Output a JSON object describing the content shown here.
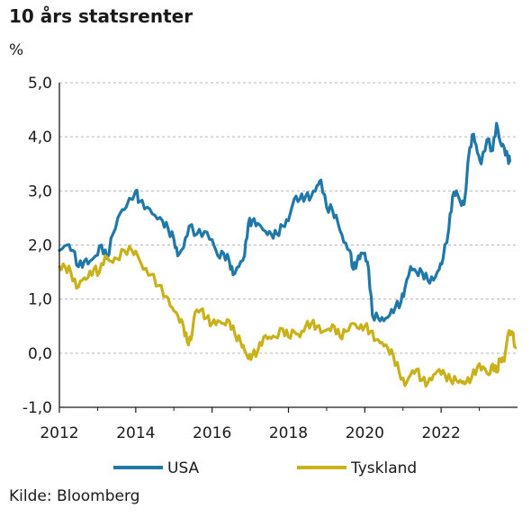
{
  "chart_data": {
    "type": "line",
    "title": "10 års statsrenter",
    "ylabel": "%",
    "source": "Kilde: Bloomberg",
    "xlim": [
      2012,
      2024
    ],
    "ylim": [
      -1.0,
      5.0
    ],
    "x_ticks": [
      2012,
      2014,
      2016,
      2018,
      2020,
      2022
    ],
    "x_tick_labels": [
      "2012",
      "2014",
      "2016",
      "2018",
      "2020",
      "2022"
    ],
    "y_ticks": [
      -1,
      0,
      1,
      2,
      3,
      4,
      5
    ],
    "y_tick_labels": [
      "-1,0",
      "0,0",
      "1,0",
      "2,0",
      "3,0",
      "4,0",
      "5,0"
    ],
    "grid": "horizontal dashed",
    "legend": "bottom",
    "series": [
      {
        "name": "USA",
        "color": "#1f78a8",
        "points": [
          [
            2012.0,
            1.9
          ],
          [
            2012.2,
            2.0
          ],
          [
            2012.35,
            1.9
          ],
          [
            2012.5,
            1.6
          ],
          [
            2012.65,
            1.7
          ],
          [
            2012.8,
            1.7
          ],
          [
            2012.95,
            1.8
          ],
          [
            2013.1,
            2.0
          ],
          [
            2013.25,
            1.75
          ],
          [
            2013.4,
            2.2
          ],
          [
            2013.6,
            2.6
          ],
          [
            2013.75,
            2.7
          ],
          [
            2014.0,
            3.0
          ],
          [
            2014.1,
            2.8
          ],
          [
            2014.3,
            2.7
          ],
          [
            2014.5,
            2.55
          ],
          [
            2014.7,
            2.45
          ],
          [
            2014.85,
            2.3
          ],
          [
            2015.0,
            2.1
          ],
          [
            2015.1,
            1.8
          ],
          [
            2015.25,
            1.95
          ],
          [
            2015.4,
            2.35
          ],
          [
            2015.6,
            2.2
          ],
          [
            2015.8,
            2.25
          ],
          [
            2016.0,
            2.1
          ],
          [
            2016.15,
            1.8
          ],
          [
            2016.3,
            1.85
          ],
          [
            2016.45,
            1.7
          ],
          [
            2016.55,
            1.45
          ],
          [
            2016.7,
            1.6
          ],
          [
            2016.85,
            1.8
          ],
          [
            2016.95,
            2.4
          ],
          [
            2017.05,
            2.45
          ],
          [
            2017.2,
            2.4
          ],
          [
            2017.4,
            2.25
          ],
          [
            2017.55,
            2.2
          ],
          [
            2017.7,
            2.2
          ],
          [
            2017.85,
            2.35
          ],
          [
            2018.0,
            2.45
          ],
          [
            2018.15,
            2.85
          ],
          [
            2018.3,
            2.85
          ],
          [
            2018.45,
            2.9
          ],
          [
            2018.6,
            2.9
          ],
          [
            2018.75,
            3.1
          ],
          [
            2018.85,
            3.2
          ],
          [
            2019.0,
            2.7
          ],
          [
            2019.15,
            2.65
          ],
          [
            2019.3,
            2.4
          ],
          [
            2019.45,
            2.05
          ],
          [
            2019.6,
            1.9
          ],
          [
            2019.7,
            1.55
          ],
          [
            2019.8,
            1.7
          ],
          [
            2019.9,
            1.85
          ],
          [
            2020.0,
            1.85
          ],
          [
            2020.1,
            1.55
          ],
          [
            2020.2,
            0.7
          ],
          [
            2020.35,
            0.65
          ],
          [
            2020.5,
            0.6
          ],
          [
            2020.65,
            0.7
          ],
          [
            2020.8,
            0.85
          ],
          [
            2020.95,
            0.95
          ],
          [
            2021.05,
            1.2
          ],
          [
            2021.2,
            1.6
          ],
          [
            2021.35,
            1.5
          ],
          [
            2021.5,
            1.5
          ],
          [
            2021.65,
            1.35
          ],
          [
            2021.8,
            1.35
          ],
          [
            2021.95,
            1.55
          ],
          [
            2022.05,
            1.75
          ],
          [
            2022.2,
            2.3
          ],
          [
            2022.3,
            2.9
          ],
          [
            2022.4,
            3.0
          ],
          [
            2022.5,
            2.8
          ],
          [
            2022.6,
            2.75
          ],
          [
            2022.75,
            3.8
          ],
          [
            2022.85,
            4.05
          ],
          [
            2022.95,
            3.7
          ],
          [
            2023.05,
            3.5
          ],
          [
            2023.2,
            3.95
          ],
          [
            2023.35,
            3.75
          ],
          [
            2023.45,
            4.25
          ],
          [
            2023.55,
            3.9
          ],
          [
            2023.65,
            3.8
          ],
          [
            2023.75,
            3.6
          ],
          [
            2023.8,
            3.55
          ]
        ]
      },
      {
        "name": "Tyskland",
        "color": "#c9b11a",
        "points": [
          [
            2012.0,
            1.6
          ],
          [
            2012.15,
            1.6
          ],
          [
            2012.3,
            1.5
          ],
          [
            2012.45,
            1.2
          ],
          [
            2012.6,
            1.35
          ],
          [
            2012.75,
            1.4
          ],
          [
            2012.9,
            1.55
          ],
          [
            2013.05,
            1.5
          ],
          [
            2013.2,
            1.8
          ],
          [
            2013.35,
            1.7
          ],
          [
            2013.5,
            1.75
          ],
          [
            2013.7,
            1.9
          ],
          [
            2013.9,
            1.9
          ],
          [
            2014.05,
            1.8
          ],
          [
            2014.2,
            1.55
          ],
          [
            2014.4,
            1.45
          ],
          [
            2014.6,
            1.25
          ],
          [
            2014.8,
            1.05
          ],
          [
            2014.95,
            0.85
          ],
          [
            2015.1,
            0.7
          ],
          [
            2015.25,
            0.5
          ],
          [
            2015.35,
            0.2
          ],
          [
            2015.45,
            0.25
          ],
          [
            2015.55,
            0.75
          ],
          [
            2015.7,
            0.8
          ],
          [
            2015.85,
            0.65
          ],
          [
            2016.0,
            0.55
          ],
          [
            2016.15,
            0.6
          ],
          [
            2016.3,
            0.55
          ],
          [
            2016.45,
            0.6
          ],
          [
            2016.6,
            0.35
          ],
          [
            2016.75,
            0.2
          ],
          [
            2016.85,
            0.05
          ],
          [
            2016.95,
            -0.1
          ],
          [
            2017.05,
            -0.05
          ],
          [
            2017.2,
            0.05
          ],
          [
            2017.35,
            0.3
          ],
          [
            2017.5,
            0.3
          ],
          [
            2017.65,
            0.3
          ],
          [
            2017.85,
            0.45
          ],
          [
            2018.0,
            0.3
          ],
          [
            2018.15,
            0.4
          ],
          [
            2018.3,
            0.3
          ],
          [
            2018.45,
            0.5
          ],
          [
            2018.6,
            0.55
          ],
          [
            2018.75,
            0.5
          ],
          [
            2018.9,
            0.4
          ],
          [
            2019.05,
            0.45
          ],
          [
            2019.2,
            0.5
          ],
          [
            2019.35,
            0.3
          ],
          [
            2019.5,
            0.4
          ],
          [
            2019.7,
            0.55
          ],
          [
            2019.85,
            0.45
          ],
          [
            2020.0,
            0.5
          ],
          [
            2020.15,
            0.4
          ],
          [
            2020.3,
            0.25
          ],
          [
            2020.45,
            0.2
          ],
          [
            2020.6,
            0.1
          ],
          [
            2020.75,
            -0.05
          ],
          [
            2020.9,
            -0.35
          ],
          [
            2021.05,
            -0.6
          ],
          [
            2021.2,
            -0.4
          ],
          [
            2021.35,
            -0.3
          ],
          [
            2021.5,
            -0.5
          ],
          [
            2021.65,
            -0.55
          ],
          [
            2021.8,
            -0.4
          ],
          [
            2021.95,
            -0.3
          ],
          [
            2022.1,
            -0.4
          ],
          [
            2022.25,
            -0.5
          ],
          [
            2022.4,
            -0.5
          ],
          [
            2022.55,
            -0.55
          ],
          [
            2022.65,
            -0.55
          ],
          [
            2022.8,
            -0.45
          ],
          [
            2022.95,
            -0.25
          ],
          [
            2023.1,
            -0.25
          ],
          [
            2023.25,
            -0.4
          ],
          [
            2023.35,
            -0.2
          ],
          [
            2023.45,
            -0.35
          ],
          [
            2023.55,
            -0.1
          ],
          [
            2023.65,
            -0.15
          ],
          [
            2023.75,
            0.35
          ],
          [
            2023.85,
            0.4
          ],
          [
            2023.95,
            0.1
          ]
        ]
      }
    ]
  }
}
